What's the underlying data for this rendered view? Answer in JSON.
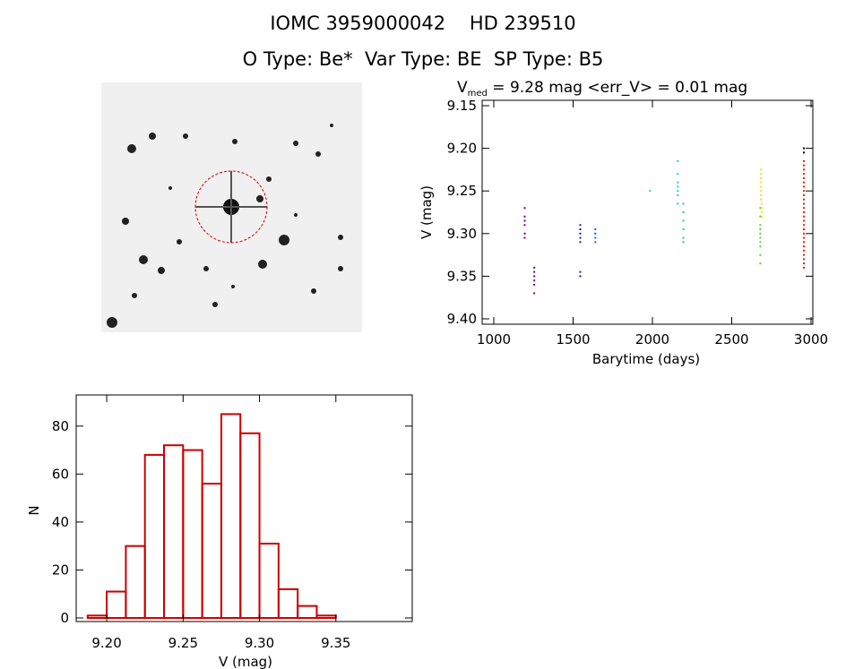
{
  "header": {
    "line1": "IOMC 3959000042    HD 239510",
    "line2": "O Type: Be*  Var Type: BE  SP Type: B5"
  },
  "lightcurve_header": {
    "label_prefix": "V",
    "label_sub": "med",
    "label_rest": " = 9.28 mag <err_V> = 0.01 mag"
  },
  "colors": {
    "axis": "#000000",
    "histogram": "#cc0000",
    "sky_background": "#f0f0f0",
    "sky_marker": "#cc0000"
  },
  "chart_data": [
    {
      "type": "scatter",
      "xlabel": "Barytime (days)",
      "ylabel": "V (mag)",
      "xlim": [
        1000,
        3000
      ],
      "ylim": [
        9.4,
        9.15
      ],
      "y_inverted": true,
      "x_ticks": [
        "1000",
        "1500",
        "2000",
        "2500",
        "3000"
      ],
      "y_ticks": [
        "9.15",
        "9.20",
        "9.25",
        "9.30",
        "9.35",
        "9.40"
      ],
      "series": [
        {
          "color": "#6a0080",
          "x": [
            1195,
            1195,
            1195,
            1195,
            1195,
            1195,
            1255,
            1255,
            1255,
            1255,
            1255,
            1255
          ],
          "y": [
            9.27,
            9.28,
            9.285,
            9.29,
            9.3,
            9.305,
            9.34,
            9.345,
            9.35,
            9.355,
            9.36,
            9.37
          ]
        },
        {
          "color": "#1a237e",
          "x": [
            1545,
            1545,
            1545,
            1545,
            1545,
            1545,
            1545
          ],
          "y": [
            9.29,
            9.295,
            9.3,
            9.305,
            9.345,
            9.35,
            9.31
          ]
        },
        {
          "color": "#1565c0",
          "x": [
            1640,
            1640,
            1640,
            1640
          ],
          "y": [
            9.295,
            9.3,
            9.305,
            9.31
          ]
        },
        {
          "color": "#26c6da",
          "x": [
            1985,
            2160,
            2160,
            2160,
            2160,
            2160,
            2160,
            2160
          ],
          "y": [
            9.25,
            9.215,
            9.23,
            9.24,
            9.245,
            9.25,
            9.255,
            9.265
          ]
        },
        {
          "color": "#2ecc71",
          "x": [
            2195,
            2195,
            2195,
            2195,
            2195,
            2195
          ],
          "y": [
            9.265,
            9.275,
            9.285,
            9.295,
            9.305,
            9.31
          ]
        },
        {
          "color": "#66cc33",
          "x": [
            2680,
            2680,
            2680,
            2680,
            2680,
            2680,
            2680,
            2680,
            2680,
            2680
          ],
          "y": [
            9.27,
            9.28,
            9.29,
            9.295,
            9.3,
            9.305,
            9.31,
            9.315,
            9.325,
            9.335
          ]
        },
        {
          "color": "#e6e600",
          "x": [
            2685,
            2685,
            2685,
            2685,
            2685,
            2685,
            2685,
            2685,
            2690,
            2690,
            2690,
            2690
          ],
          "y": [
            9.225,
            9.23,
            9.235,
            9.24,
            9.245,
            9.25,
            9.255,
            9.26,
            9.265,
            9.27,
            9.275,
            9.28
          ]
        },
        {
          "color": "#dd2200",
          "x": [
            2955,
            2955,
            2955,
            2955,
            2955,
            2955,
            2955,
            2955,
            2955,
            2955,
            2955,
            2955,
            2955,
            2955,
            2955,
            2955,
            2955,
            2955,
            2955,
            2955,
            2955,
            2955,
            2955,
            2955,
            2955,
            2955
          ],
          "y": [
            9.215,
            9.22,
            9.225,
            9.23,
            9.235,
            9.24,
            9.245,
            9.25,
            9.255,
            9.26,
            9.265,
            9.27,
            9.275,
            9.28,
            9.285,
            9.29,
            9.295,
            9.3,
            9.305,
            9.31,
            9.315,
            9.32,
            9.325,
            9.33,
            9.335,
            9.34
          ]
        },
        {
          "color": "#000000",
          "x": [
            2955,
            2955
          ],
          "y": [
            9.2,
            9.205
          ]
        }
      ]
    },
    {
      "type": "bar",
      "xlabel": "V (mag)",
      "ylabel": "N",
      "xlim": [
        9.18,
        9.4
      ],
      "ylim": [
        0,
        90
      ],
      "x_ticks": [
        "9.20",
        "9.25",
        "9.30",
        "9.35"
      ],
      "y_ticks": [
        "0",
        "20",
        "40",
        "60",
        "80"
      ],
      "bin_width": 0.0125,
      "bin_starts": [
        9.1875,
        9.2,
        9.2125,
        9.225,
        9.2375,
        9.25,
        9.2625,
        9.275,
        9.2875,
        9.3,
        9.3125,
        9.325,
        9.3375,
        9.35,
        9.3625
      ],
      "values": [
        1,
        11,
        30,
        68,
        72,
        70,
        56,
        85,
        77,
        31,
        12,
        5,
        1,
        0,
        0
      ]
    }
  ]
}
